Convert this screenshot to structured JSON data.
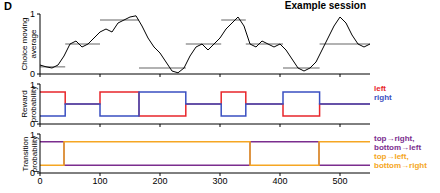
{
  "panel_label": "D",
  "chart_data": [
    {
      "type": "line",
      "title": "Example session",
      "ylabel": "Choice moving average",
      "xlim": [
        0,
        550
      ],
      "xticks": [
        0,
        100,
        200,
        300,
        400,
        500
      ],
      "ylim": [
        0,
        1
      ],
      "yticks": [
        0,
        1
      ],
      "tick_labels": "y",
      "x": [
        0,
        10,
        20,
        30,
        40,
        50,
        60,
        70,
        80,
        90,
        100,
        110,
        120,
        130,
        140,
        150,
        160,
        170,
        180,
        190,
        200,
        210,
        220,
        230,
        240,
        250,
        260,
        270,
        280,
        290,
        300,
        310,
        320,
        330,
        340,
        350,
        360,
        370,
        380,
        390,
        400,
        410,
        420,
        430,
        440,
        450,
        460,
        470,
        480,
        490,
        500,
        510,
        520,
        530,
        540,
        550
      ],
      "series": [
        {
          "name": "Choice moving average",
          "color": "#000000",
          "values": [
            0.15,
            0.12,
            0.1,
            0.15,
            0.3,
            0.5,
            0.55,
            0.45,
            0.5,
            0.6,
            0.7,
            0.75,
            0.7,
            0.85,
            0.9,
            0.95,
            0.97,
            0.8,
            0.6,
            0.45,
            0.35,
            0.2,
            0.05,
            0.02,
            0.1,
            0.3,
            0.45,
            0.5,
            0.4,
            0.5,
            0.6,
            0.75,
            0.85,
            0.95,
            0.8,
            0.5,
            0.45,
            0.55,
            0.5,
            0.45,
            0.5,
            0.4,
            0.25,
            0.1,
            0.05,
            0.1,
            0.2,
            0.4,
            0.6,
            0.8,
            0.95,
            0.85,
            0.65,
            0.5,
            0.45,
            0.5
          ]
        }
      ],
      "reference_segments": {
        "color": "#999999",
        "segments": [
          {
            "x": [
              0,
              42
            ],
            "y": 0.12
          },
          {
            "x": [
              42,
              100
            ],
            "y": 0.5
          },
          {
            "x": [
              100,
              165
            ],
            "y": 0.9
          },
          {
            "x": [
              165,
              243
            ],
            "y": 0.1
          },
          {
            "x": [
              243,
              302
            ],
            "y": 0.5
          },
          {
            "x": [
              302,
              343
            ],
            "y": 0.9
          },
          {
            "x": [
              343,
              405
            ],
            "y": 0.5
          },
          {
            "x": [
              405,
              466
            ],
            "y": 0.1
          },
          {
            "x": [
              466,
              550
            ],
            "y": 0.5
          }
        ]
      }
    },
    {
      "type": "step",
      "ylabel": "Reward probability",
      "xlim": [
        0,
        550
      ],
      "xticks": [
        0,
        100,
        200,
        300,
        400,
        500
      ],
      "ylim": [
        0,
        1
      ],
      "yticks": [
        0,
        1
      ],
      "tick_labels": "y",
      "legend": "right",
      "x": [
        0,
        42,
        100,
        165,
        243,
        302,
        343,
        405,
        466,
        550
      ],
      "series": [
        {
          "name": "left",
          "color": "#e8262b",
          "values": [
            0.8,
            0.5,
            0.8,
            0.2,
            0.5,
            0.8,
            0.5,
            0.2,
            0.5,
            0.5
          ]
        },
        {
          "name": "right",
          "color": "#3a4fc1",
          "values": [
            0.2,
            0.5,
            0.2,
            0.8,
            0.5,
            0.2,
            0.5,
            0.8,
            0.5,
            0.5
          ]
        }
      ]
    },
    {
      "type": "step",
      "ylabel": "Transition probability",
      "xlim": [
        0,
        550
      ],
      "xticks": [
        0,
        100,
        200,
        300,
        400,
        500
      ],
      "ylim": [
        0,
        1
      ],
      "yticks": [
        0,
        1
      ],
      "tick_labels": true,
      "legend": "right",
      "x": [
        0,
        40,
        350,
        465,
        550
      ],
      "series": [
        {
          "name": "top→right, bottom→left",
          "color": "#7b2d8e",
          "values": [
            0.8,
            0.2,
            0.8,
            0.2,
            0.2
          ]
        },
        {
          "name": "top→left, bottom→right",
          "color": "#f5a623",
          "values": [
            0.2,
            0.8,
            0.2,
            0.8,
            0.8
          ]
        }
      ]
    }
  ]
}
